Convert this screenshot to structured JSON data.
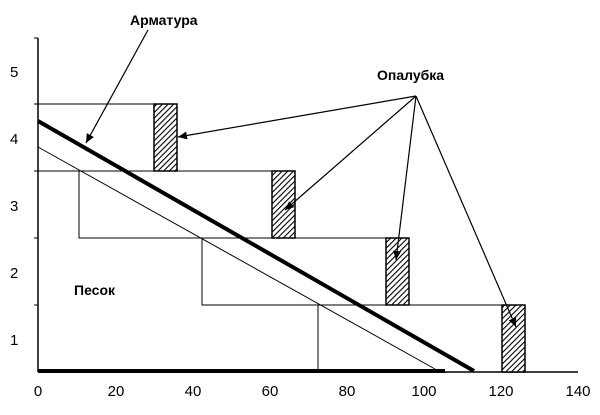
{
  "diagram": {
    "x_ticks": [
      "0",
      "20",
      "40",
      "60",
      "80",
      "100",
      "120",
      "140"
    ],
    "y_ticks": [
      "1",
      "2",
      "3",
      "4",
      "5"
    ],
    "labels": {
      "rebar": "Арматура",
      "formwork": "Опалубка",
      "sand": "Песок"
    },
    "colors": {
      "ink": "#000000",
      "background": "#ffffff"
    }
  }
}
